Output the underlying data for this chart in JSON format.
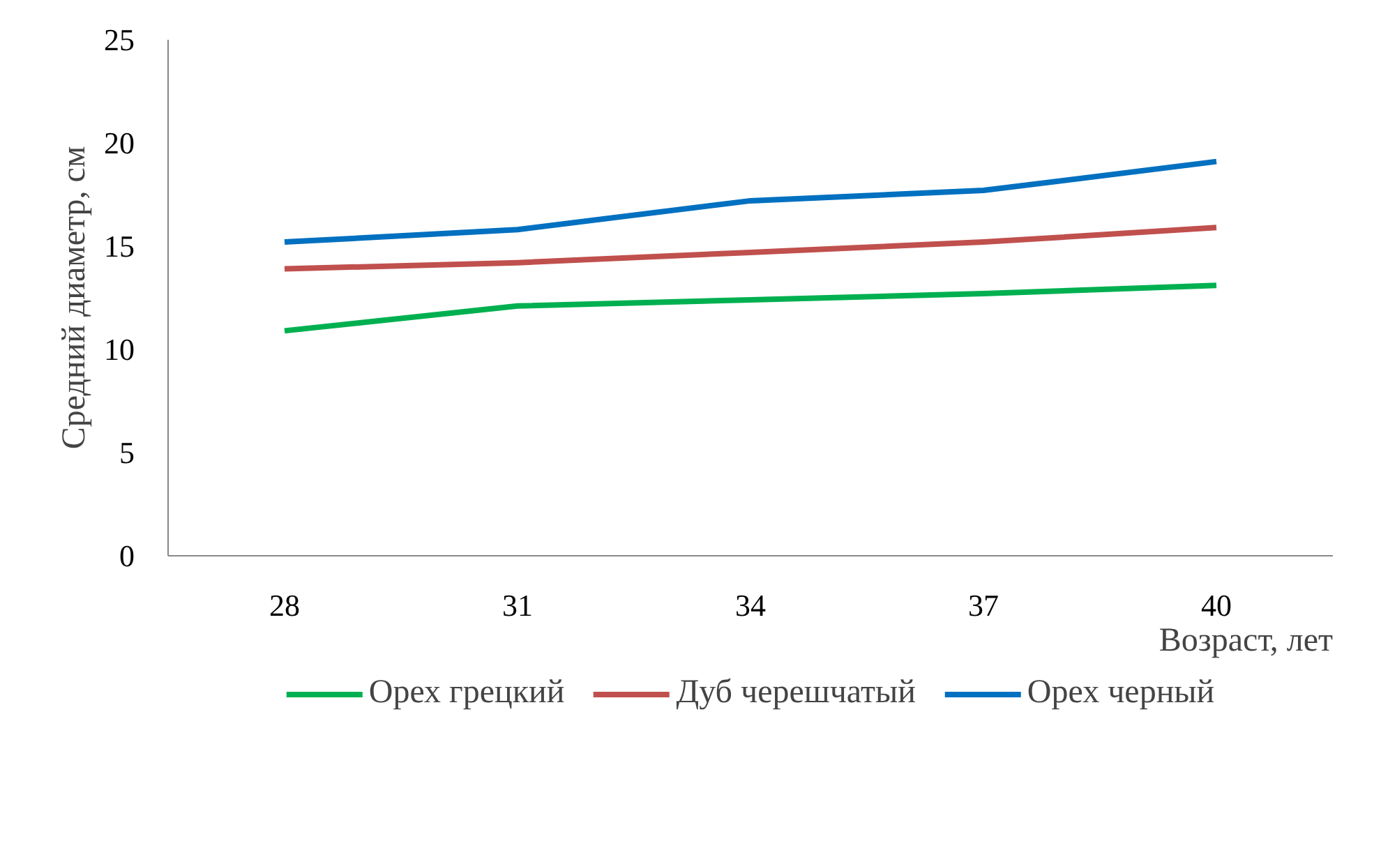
{
  "chart_data": {
    "type": "line",
    "xlabel": "Возраст, лет",
    "ylabel": "Средний диаметр, см",
    "categories": [
      "28",
      "31",
      "34",
      "37",
      "40"
    ],
    "series": [
      {
        "name": "Орех грецкий",
        "color": "#00b050",
        "values": [
          10.9,
          12.1,
          12.4,
          12.7,
          13.1
        ]
      },
      {
        "name": "Дуб черешчатый",
        "color": "#c0504d",
        "values": [
          13.9,
          14.2,
          14.7,
          15.2,
          15.9
        ]
      },
      {
        "name": "Орех черный",
        "color": "#0070c0",
        "values": [
          15.2,
          15.8,
          17.2,
          17.7,
          19.1
        ]
      }
    ],
    "ylim": [
      0,
      25
    ],
    "yticks": [
      0,
      5,
      10,
      15,
      20,
      25
    ],
    "grid": false,
    "legend": "bottom",
    "marker": "none",
    "line_style": "solid"
  }
}
